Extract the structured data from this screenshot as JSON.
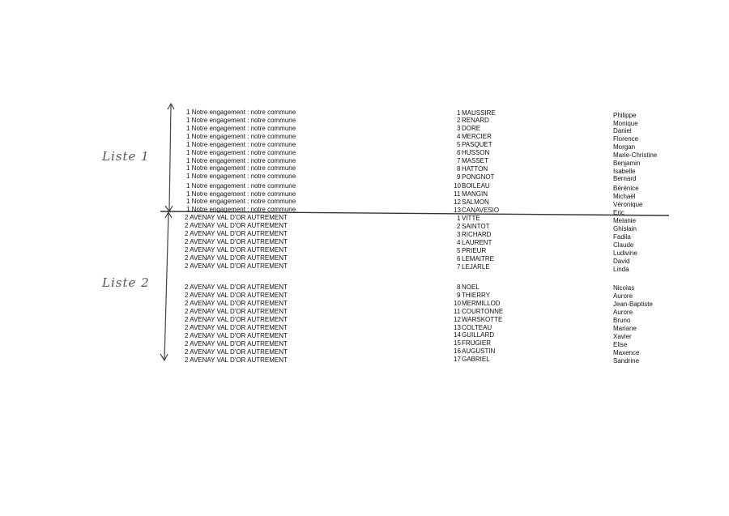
{
  "annotations": {
    "list1_label": "Liste 1",
    "list2_label": "Liste 2"
  },
  "list1": {
    "party": "1 Notre engagement : notre commune",
    "candidates": [
      {
        "rank": "1",
        "surname": "MAUSSIRE",
        "first_name": "Philippe"
      },
      {
        "rank": "2",
        "surname": "RENARD",
        "first_name": "Monique"
      },
      {
        "rank": "3",
        "surname": "DORE",
        "first_name": "Daniel"
      },
      {
        "rank": "4",
        "surname": "MERCIER",
        "first_name": "Florence"
      },
      {
        "rank": "5",
        "surname": "PASQUET",
        "first_name": "Morgan"
      },
      {
        "rank": "6",
        "surname": "HUSSON",
        "first_name": "Marie-Christine"
      },
      {
        "rank": "7",
        "surname": "MASSET",
        "first_name": "Benjamin"
      },
      {
        "rank": "8",
        "surname": "HATTON",
        "first_name": "Isabelle"
      },
      {
        "rank": "9",
        "surname": "PONGNOT",
        "first_name": "Bernard"
      },
      {
        "rank": "10",
        "surname": "BOILEAU",
        "first_name": "Bérénice"
      },
      {
        "rank": "11",
        "surname": "MANGIN",
        "first_name": "Michaël"
      },
      {
        "rank": "12",
        "surname": "SALMON",
        "first_name": "Véronique"
      },
      {
        "rank": "13",
        "surname": "CANAVESIO",
        "first_name": "Eric"
      }
    ]
  },
  "list2": {
    "party": "2 AVENAY VAL D'OR AUTREMENT",
    "candidates": [
      {
        "rank": "1",
        "surname": "VITTE",
        "first_name": "Melanie"
      },
      {
        "rank": "2",
        "surname": "SAINTOT",
        "first_name": "Ghislain"
      },
      {
        "rank": "3",
        "surname": "RICHARD",
        "first_name": "Fadila"
      },
      {
        "rank": "4",
        "surname": "LAURENT",
        "first_name": "Claude"
      },
      {
        "rank": "5",
        "surname": "PRIEUR",
        "first_name": "Ludivine"
      },
      {
        "rank": "6",
        "surname": "LEMAITRE",
        "first_name": "David"
      },
      {
        "rank": "7",
        "surname": "LEJARLE",
        "first_name": "Linda"
      },
      {
        "rank": "8",
        "surname": "NOEL",
        "first_name": "Nicolas"
      },
      {
        "rank": "9",
        "surname": "THIERRY",
        "first_name": "Aurore"
      },
      {
        "rank": "10",
        "surname": "MERMILLOD",
        "first_name": "Jean-Baptiste"
      },
      {
        "rank": "11",
        "surname": "COURTONNE",
        "first_name": "Aurore"
      },
      {
        "rank": "12",
        "surname": "WARSKOTTE",
        "first_name": "Bruno"
      },
      {
        "rank": "13",
        "surname": "COLTEAU",
        "first_name": "Mariane"
      },
      {
        "rank": "14",
        "surname": "GUILLARD",
        "first_name": "Xavier"
      },
      {
        "rank": "15",
        "surname": "FRUGIER",
        "first_name": "Elise"
      },
      {
        "rank": "16",
        "surname": "AUGUSTIN",
        "first_name": "Maxence"
      },
      {
        "rank": "17",
        "surname": "GABRIEL",
        "first_name": "Sandrine"
      }
    ]
  }
}
